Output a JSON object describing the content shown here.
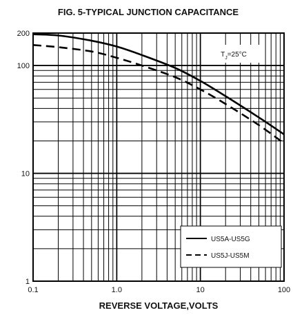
{
  "chart_data": {
    "type": "line",
    "title": "FIG. 5-TYPICAL JUNCTION CAPACITANCE",
    "xlabel": "REVERSE VOLTAGE,VOLTS",
    "ylabel": "",
    "x_scale": "log",
    "y_scale": "log",
    "xlim": [
      0.1,
      100
    ],
    "ylim": [
      1,
      200
    ],
    "x_tick_labels": [
      "0.1",
      "1.0",
      "10",
      "100"
    ],
    "x_tick_values": [
      0.1,
      1,
      10,
      100
    ],
    "y_tick_labels": [
      "1",
      "10",
      "100",
      "200"
    ],
    "y_tick_values": [
      1,
      10,
      100,
      200
    ],
    "grid": true,
    "annotation": "T",
    "annotation_sub": "J",
    "annotation_tail": "=25°C",
    "legend_position": "bottom-right",
    "series": [
      {
        "name": "US5A-US5G",
        "style": "solid",
        "x": [
          0.1,
          0.2,
          0.5,
          1,
          2,
          5,
          10,
          20,
          50,
          100
        ],
        "y": [
          195,
          190,
          170,
          150,
          125,
          95,
          72,
          52,
          33,
          23
        ]
      },
      {
        "name": "US5J-US5M",
        "style": "dashed",
        "x": [
          0.1,
          0.2,
          0.5,
          1,
          2,
          5,
          10,
          20,
          50,
          100
        ],
        "y": [
          155,
          148,
          135,
          118,
          100,
          78,
          60,
          44,
          28,
          19
        ]
      }
    ]
  }
}
